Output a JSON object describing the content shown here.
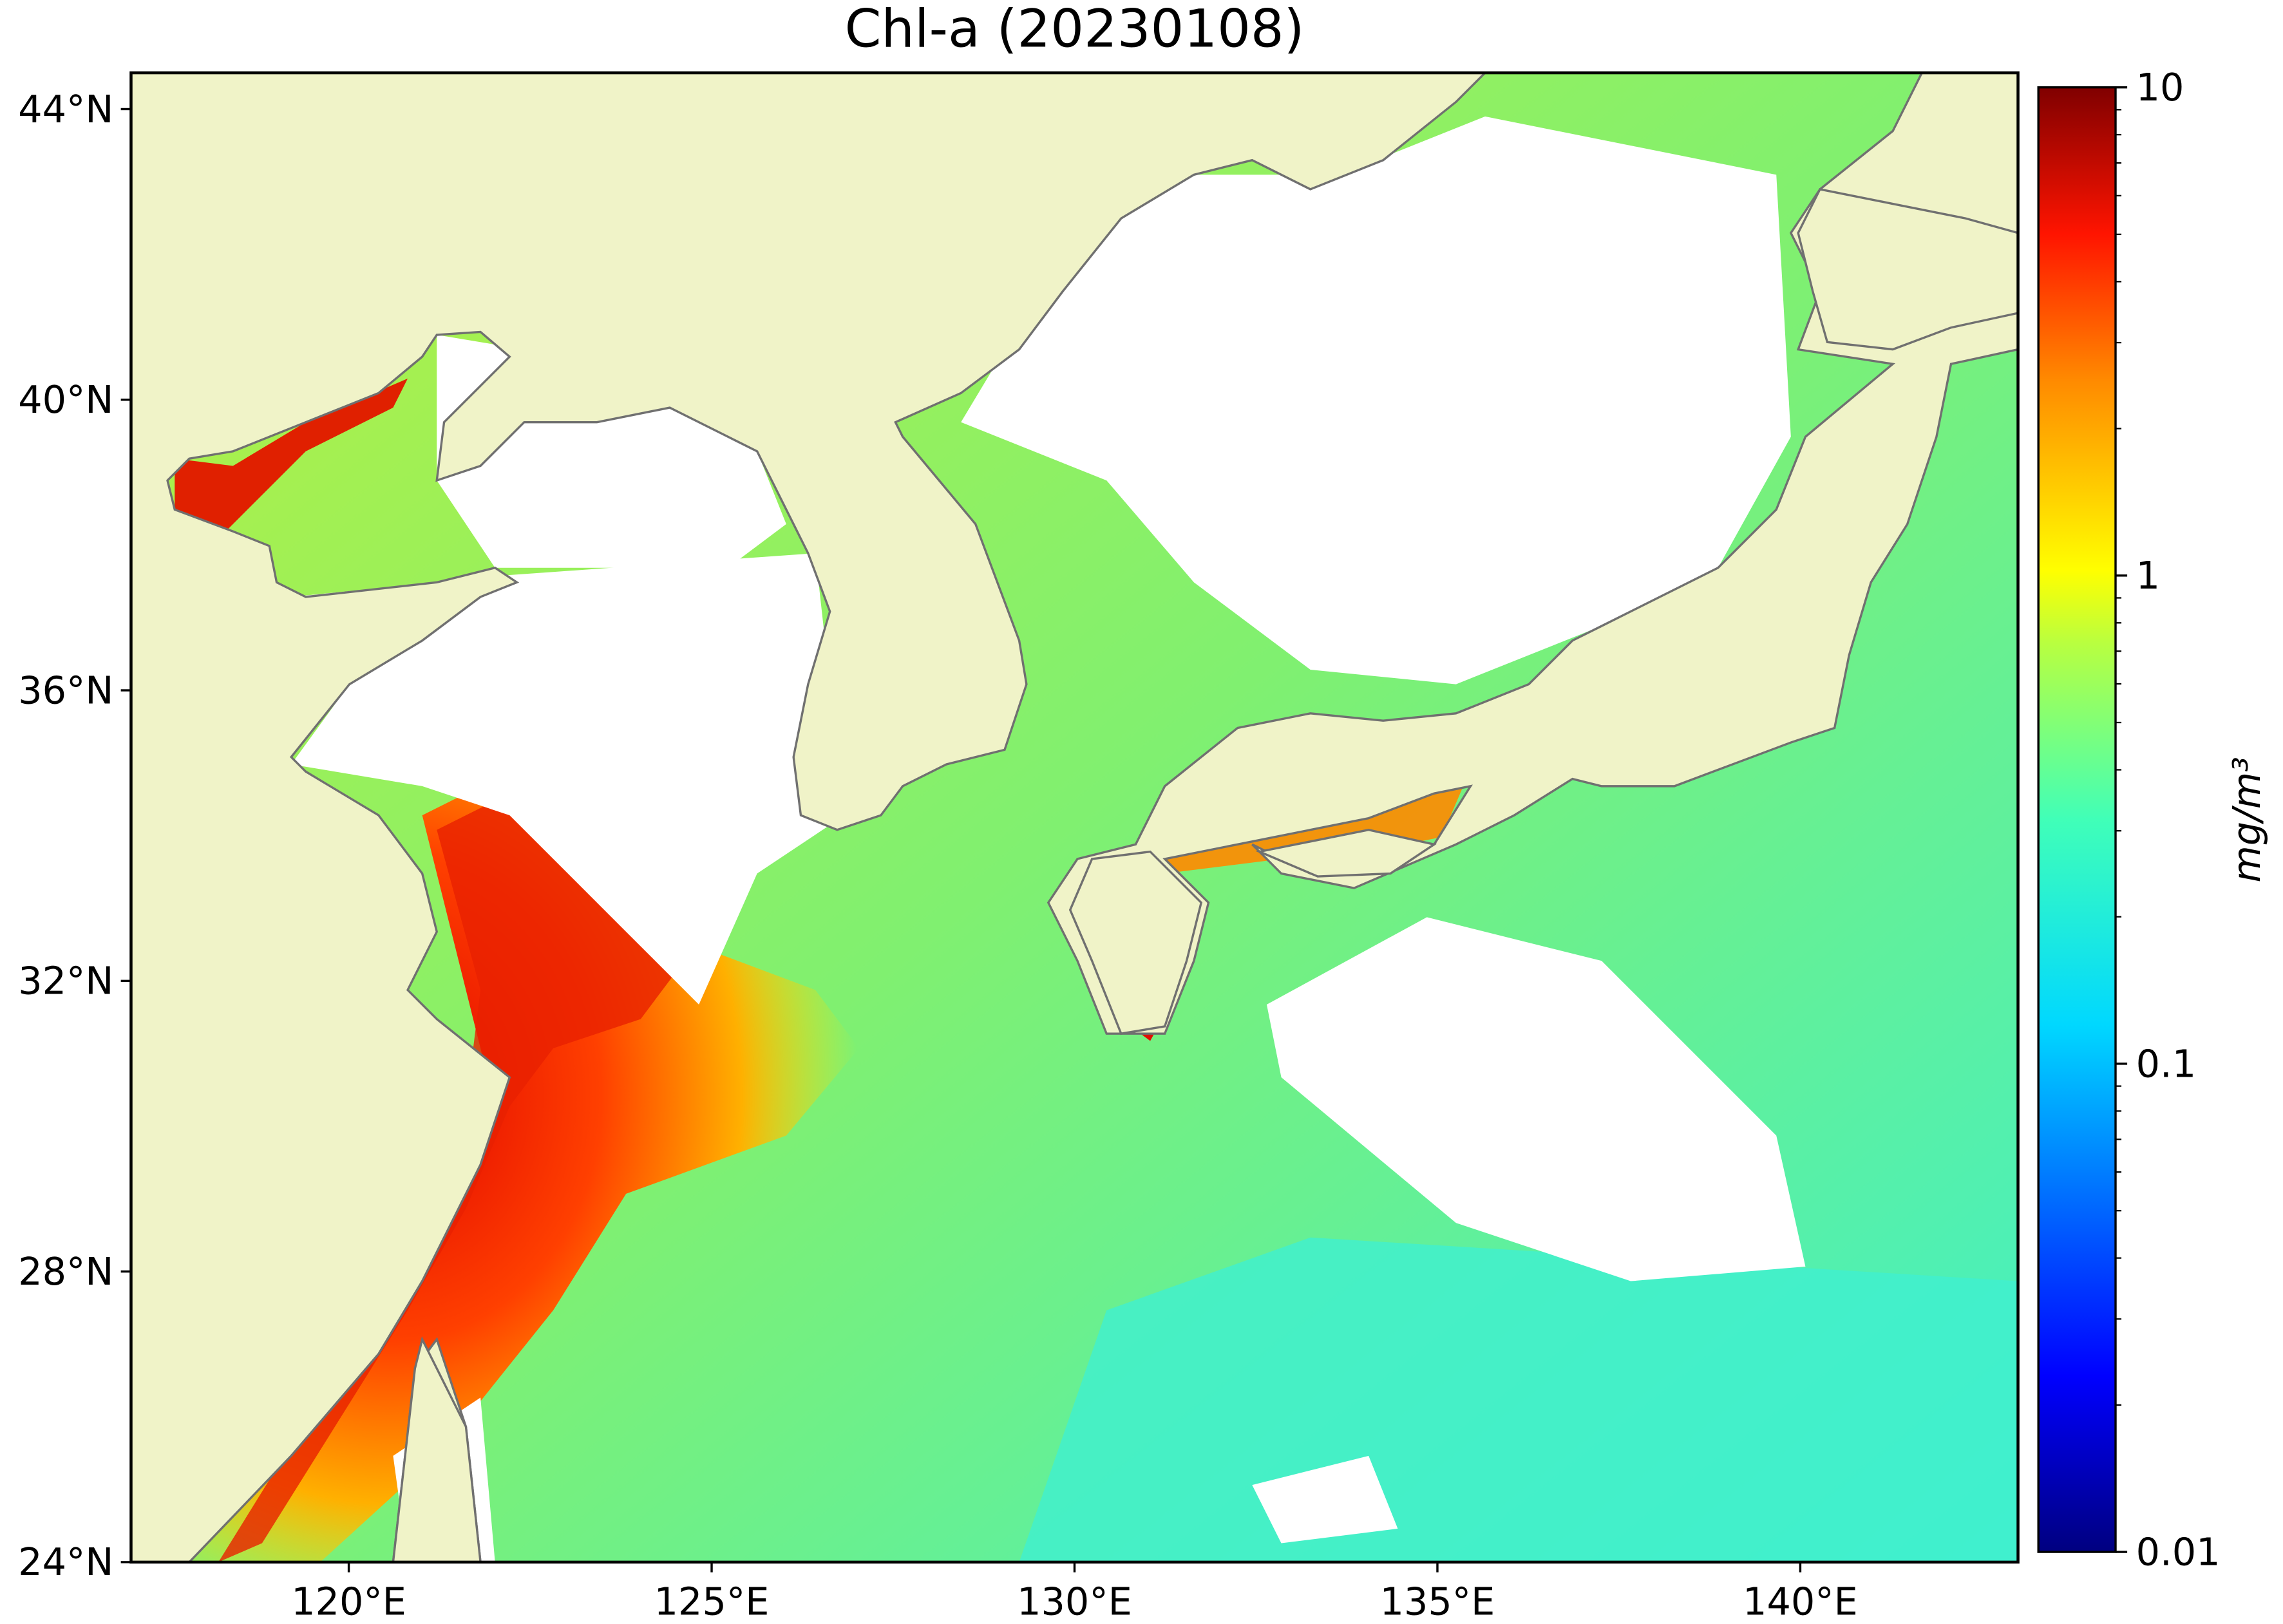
{
  "map": {
    "title": "Chl-a (20230108)",
    "lon_range": [
      117,
      143
    ],
    "lat_range": [
      24,
      44.5
    ],
    "lon_ticks": [
      {
        "value": 120,
        "label": "120°E"
      },
      {
        "value": 125,
        "label": "125°E"
      },
      {
        "value": 130,
        "label": "130°E"
      },
      {
        "value": 135,
        "label": "135°E"
      },
      {
        "value": 140,
        "label": "140°E"
      }
    ],
    "lat_ticks": [
      {
        "value": 24,
        "label": "24°N"
      },
      {
        "value": 28,
        "label": "28°N"
      },
      {
        "value": 32,
        "label": "32°N"
      },
      {
        "value": 36,
        "label": "36°N"
      },
      {
        "value": 40,
        "label": "40°N"
      },
      {
        "value": 44,
        "label": "44°N"
      }
    ],
    "colorbar": {
      "label": "mg/m³",
      "log": true,
      "range": [
        0.01,
        10
      ],
      "ticks": [
        0.01,
        0.1,
        1,
        10
      ]
    }
  }
}
